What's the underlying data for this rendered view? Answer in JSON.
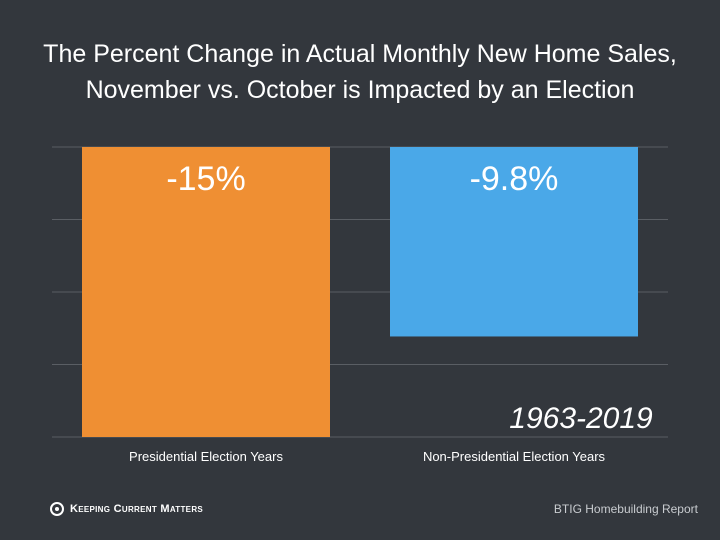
{
  "chart_data": {
    "type": "bar",
    "title_lines": [
      "The Percent Change in Actual Monthly New Home Sales,",
      "November vs. October is Impacted by an Election"
    ],
    "categories": [
      "Presidential Election Years",
      "Non-Presidential Election Years"
    ],
    "values": [
      -15,
      -9.8
    ],
    "value_labels": [
      "-15%",
      "-9.8%"
    ],
    "colors": [
      "#ef8f33",
      "#4aa8e8"
    ],
    "ylim": [
      -15,
      0
    ],
    "grid": true,
    "annotation": "1963-2019"
  },
  "footer": {
    "logo_text": "Keeping Current Matters",
    "source": "BTIG Homebuilding Report"
  }
}
